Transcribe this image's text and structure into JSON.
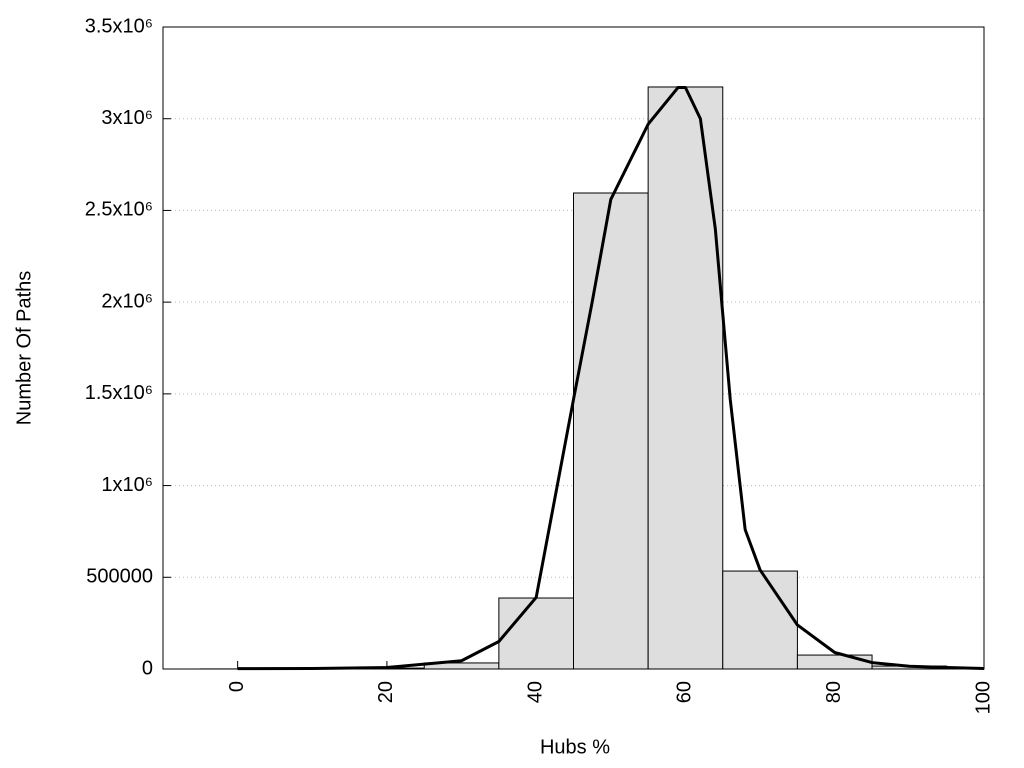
{
  "chart_data": {
    "type": "histogram",
    "xlabel": "Hubs %",
    "ylabel": "Number Of Paths",
    "bins": [
      -5,
      5,
      15,
      25,
      35,
      45,
      55,
      65,
      75,
      85,
      95
    ],
    "values": [
      500,
      1500,
      5000,
      33000,
      387000,
      2595000,
      3173000,
      534000,
      76000,
      16000
    ],
    "color": "#dedede",
    "curve": {
      "type": "line",
      "color": "#000000",
      "x": [
        0,
        10,
        20,
        30,
        35,
        40,
        45,
        47.5,
        50,
        55,
        59,
        60,
        62,
        64,
        66,
        68,
        70,
        75,
        80,
        85,
        90,
        95,
        100
      ],
      "values": [
        2000,
        3000,
        8000,
        45000,
        150000,
        390000,
        1470000,
        2000000,
        2560000,
        2970000,
        3170000,
        3170000,
        3000000,
        2400000,
        1470000,
        760000,
        540000,
        240000,
        90000,
        35000,
        15000,
        8000,
        3000
      ]
    },
    "xlim": [
      -10,
      100
    ],
    "xticks": [
      0,
      20,
      40,
      60,
      80,
      100
    ],
    "ylim": [
      0,
      3500000
    ],
    "yticks": [
      0,
      500000,
      {
        "value": 1000000,
        "label": "1x10⁶"
      },
      {
        "value": 1500000,
        "label": "1.5x10⁶"
      },
      {
        "value": 2000000,
        "label": "2x10⁶"
      },
      {
        "value": 2500000,
        "label": "2.5x10⁶"
      },
      {
        "value": 3000000,
        "label": "3x10⁶"
      },
      {
        "value": 3500000,
        "label": "3.5x10⁶"
      }
    ],
    "grid": true
  }
}
